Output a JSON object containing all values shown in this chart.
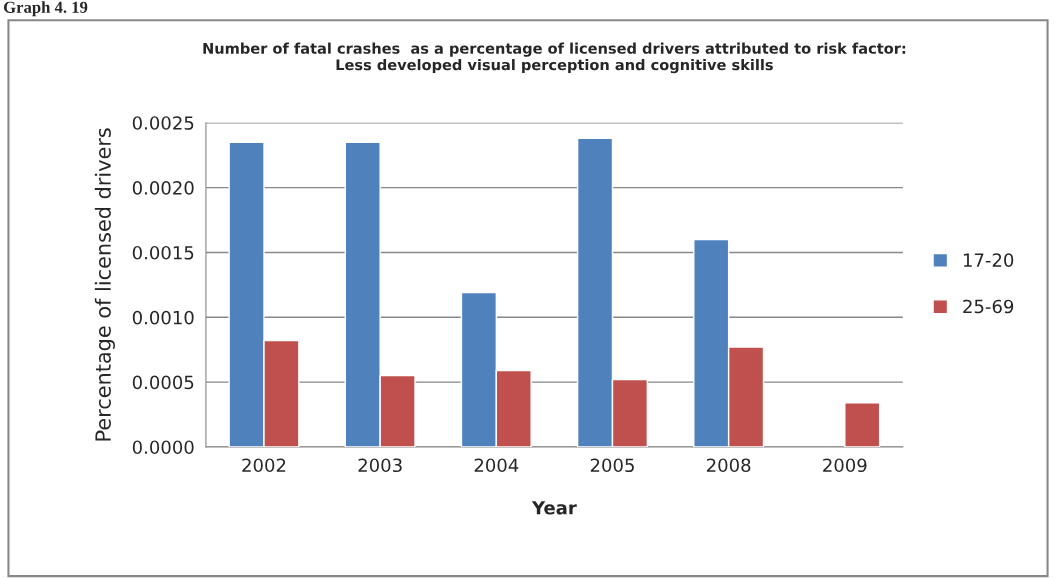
{
  "chart_data": {
    "type": "bar",
    "title": "Number of fatal crashes  as a percentage of licensed drivers attributed to risk factor:\nLess developed visual perception and cognitive skills",
    "xlabel": "Year",
    "ylabel": "Percentage of licensed drivers",
    "annotations": [
      "Graph 4. 19"
    ],
    "categories": [
      "2002",
      "2003",
      "2004",
      "2005",
      "2008",
      "2009"
    ],
    "series": [
      {
        "name": "17-20",
        "color": "#4f81bd",
        "values": [
          0.00235,
          0.00235,
          0.00119,
          0.00238,
          0.0016,
          null
        ]
      },
      {
        "name": "25-69",
        "color": "#c0504d",
        "values": [
          0.00082,
          0.00055,
          0.00059,
          0.00052,
          0.00077,
          0.00034
        ]
      }
    ],
    "ylim": [
      0,
      0.0025
    ],
    "yticks": [
      {
        "value": 0,
        "label": "0.0000"
      },
      {
        "value": 0.0005,
        "label": "0.0005"
      },
      {
        "value": 0.001,
        "label": "0.0010"
      },
      {
        "value": 0.0015,
        "label": "0.0015"
      },
      {
        "value": 0.002,
        "label": "0.0020"
      },
      {
        "value": 0.0025,
        "label": "0.0025"
      }
    ],
    "grid": "y",
    "legend": "right"
  }
}
